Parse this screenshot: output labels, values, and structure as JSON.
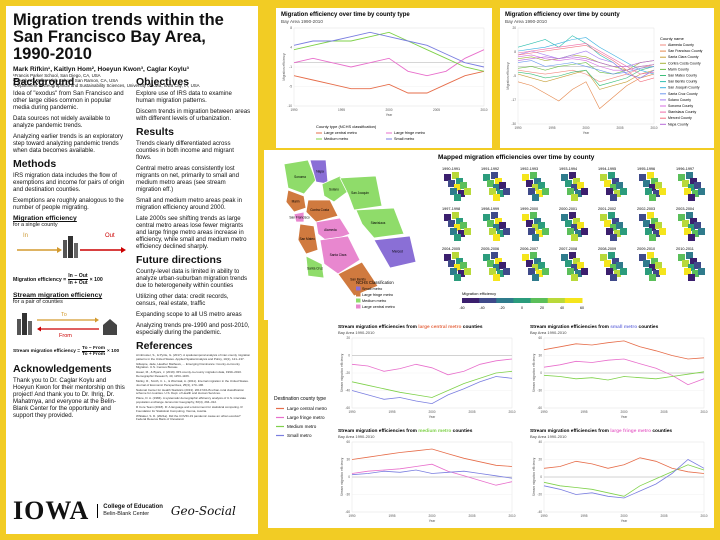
{
  "poster": {
    "title": "Migration trends within the San Francisco Bay Area, 1990-2010",
    "authors": "Mark Rifkin¹, Kaitlyn Hom², Hoeyun Kwon³, Caglar Koylu³",
    "affiliations": [
      "¹Francis Parker School, San Diego, CA, USA",
      "²Dougherty Valley High School, San Ramon, CA, USA",
      "³Department of Geographical and Sustainability Sciences, University of Iowa, Iowa City, IA, USA"
    ]
  },
  "background": {
    "heading": "Background",
    "paragraphs": [
      "Idea of \"exodus\" from San Francisco and other large cities common in popular media during pandemic.",
      "Data sources not widely available to analyze pandemic trends.",
      "Analyzing earlier trends is an exploratory step toward analyzing pandemic trends when data becomes available."
    ]
  },
  "methods": {
    "heading": "Methods",
    "paragraphs": [
      "IRS migration data includes the flow of exemptions and income for pairs of origin and destination counties.",
      "Exemptions are roughly analogous to the number of people migrating."
    ],
    "eff_heading": "Migration efficiency",
    "eff_sub": "for a single county",
    "eff_in": "In",
    "eff_out": "Out",
    "eff_formula_label": "Migration efficiency =",
    "eff_formula_num": "In − Out",
    "eff_formula_den": "In + Out",
    "eff_formula_mult": "× 100",
    "stream_heading": "Stream migration efficiency",
    "stream_sub": "for a pair of counties",
    "stream_to": "To",
    "stream_from": "From",
    "stream_formula_label": "Stream migration efficiency =",
    "stream_formula_num": "To − From",
    "stream_formula_den": "To + From",
    "stream_formula_mult": "× 100"
  },
  "acknowledgements": {
    "heading": "Acknowledgements",
    "text": "Thank you to Dr. Caglar Koylu and Hoeyun Kwon for their mentorship on this project! And thank you to Dr. Ihrig, Dr. Mahatmya, and everyone at the Belin-Blank Center for the opportunity and support they provided."
  },
  "objectives": {
    "heading": "Objectives",
    "paragraphs": [
      "Explore use of IRS data to examine human migration patterns.",
      "Discern trends in migration between areas with different levels of urbanization."
    ]
  },
  "results": {
    "heading": "Results",
    "paragraphs": [
      "Trends clearly differentiated across counties in both income and migrant flows.",
      "Central metro areas consistently lost migrants on net, primarily to small and medium metro areas (see stream migration eff.)",
      "Small and medium metro areas peak in migration efficiency around 2000.",
      "Late 2000s see shifting trends as large central metro areas lose fewer migrants and large fringe metro areas increase in efficiency, while small and medium metro efficiency declined sharply."
    ]
  },
  "future": {
    "heading": "Future directions",
    "paragraphs": [
      "County-level data is limited in ability to analyze urban-suburban migration trends due to heterogeneity within counties",
      "Utilizing other data: credit records, census, real estate, traffic",
      "Expanding scope to all US metro areas",
      "Analyzing trends pre-1990 and post-2010, especially during the pandemic."
    ]
  },
  "references": {
    "heading": "References",
    "items": [
      "Armbruster, S., & Pyrtle, G. (2017). A spatiotemporal analysis of inter-county migration patterns in the United States. Applied Spatial Analysis and Policy, 10(1), 121–137.",
      "Gillespie, Jade, Heather Mathews, ... Emerging Dominance: County-to-County Migration. U.S. Census Bureau.",
      "Hauer, M., & Byars, J. (2019). IRS county-to-county migration data, 1990–2010. Demographic Research, 40, 1153–1166.",
      "Molloy, R., Smith, C. L., & Wozniak, A. (2011). Internal migration in the United States. Journal of Economic Perspectives, 25(3), 173–196.",
      "National Center for Health Statistics (2013). 2013 NCHS urban-rural classification scheme for counties. U.S. Dept. of Health and Human Services.",
      "Plane, D. A. (1984). A systematic demographic efficiency analysis of U.S. interstate population exchange. Economic Geography, 60(4), 294–312.",
      "R Core Team (2018). R: A language and environment for statistical computing. R Foundation for Statistical Computing, Vienna, Austria.",
      "Whitaker, S. D. (2021a). Did the COVID-19 pandemic cause an urban exodus? Federal Reserve Bank of Cleveland."
    ]
  },
  "logos": {
    "iowa": "IOWA",
    "college_line1": "College of Education",
    "college_line2": "Belin-Blank Center",
    "geosocial": "Geo-Social"
  },
  "chart_data": [
    {
      "type": "line",
      "title": "Migration efficiency over time by county type",
      "subtitle": "Bay Area 1990-2010",
      "xlabel": "Year",
      "ylabel": "Migration efficiency",
      "x": [
        1990,
        1992,
        1994,
        1996,
        1998,
        2000,
        2002,
        2004,
        2006,
        2008,
        2010
      ],
      "ylim": [
        -10,
        8
      ],
      "legend_title": "County type (NCHS classification)",
      "series": [
        {
          "name": "Large central metro",
          "color": "#e66d4a",
          "values": [
            -3,
            -4,
            -5,
            -6,
            -6,
            -5,
            -7,
            -7,
            -5,
            -3,
            -2
          ]
        },
        {
          "name": "Large fringe metro",
          "color": "#e86fcc",
          "values": [
            0,
            1,
            0,
            -1,
            0,
            1,
            -2,
            -3,
            -2,
            1,
            3
          ]
        },
        {
          "name": "Medium metro",
          "color": "#7fd14a",
          "values": [
            3,
            4,
            5,
            5,
            6,
            7,
            5,
            3,
            1,
            -1,
            -2
          ]
        },
        {
          "name": "Small metro",
          "color": "#7a7ee0",
          "values": [
            4,
            5,
            5,
            6,
            7,
            6,
            5,
            4,
            2,
            0,
            -1
          ]
        }
      ]
    },
    {
      "type": "line",
      "title": "Migration efficiency over time by county",
      "subtitle": "Bay Area 1990-2010",
      "xlabel": "Year",
      "ylabel": "Migration efficiency",
      "x": [
        1990,
        1992,
        1994,
        1996,
        1998,
        2000,
        2002,
        2004,
        2006,
        2008,
        2010
      ],
      "ylim": [
        -30,
        20
      ],
      "legend_title": "County name",
      "series": [
        {
          "name": "Alameda County",
          "color": "#f28b82",
          "values": [
            -2,
            -3,
            -4,
            -3,
            -2,
            -4,
            -8,
            -6,
            -4,
            -1,
            1
          ]
        },
        {
          "name": "San Francisco County",
          "color": "#e5884d",
          "values": [
            -8,
            -10,
            -14,
            -18,
            -12,
            -8,
            -22,
            -16,
            -10,
            -6,
            -4
          ]
        },
        {
          "name": "Santa Clara County",
          "color": "#c7a13a",
          "values": [
            -4,
            -6,
            -8,
            -6,
            -4,
            -2,
            -12,
            -10,
            -8,
            -4,
            -2
          ]
        },
        {
          "name": "Contra Costa County",
          "color": "#a6b33a",
          "values": [
            4,
            5,
            3,
            4,
            6,
            5,
            2,
            0,
            -2,
            2,
            3
          ]
        },
        {
          "name": "Marin County",
          "color": "#6fbf4a",
          "values": [
            -1,
            0,
            -2,
            0,
            1,
            2,
            -3,
            -4,
            -2,
            0,
            1
          ]
        },
        {
          "name": "San Mateo County",
          "color": "#3dbf7a",
          "values": [
            -3,
            -4,
            -6,
            -5,
            -3,
            -2,
            -10,
            -8,
            -6,
            -2,
            0
          ]
        },
        {
          "name": "San Benito County",
          "color": "#2fbfb0",
          "values": [
            10,
            12,
            14,
            10,
            16,
            12,
            6,
            2,
            -4,
            -6,
            -2
          ]
        },
        {
          "name": "San Joaquin County",
          "color": "#3bb0e0",
          "values": [
            8,
            9,
            10,
            12,
            14,
            15,
            10,
            6,
            2,
            -2,
            -4
          ]
        },
        {
          "name": "Santa Cruz County",
          "color": "#6f9af0",
          "values": [
            2,
            3,
            0,
            1,
            2,
            0,
            -2,
            -4,
            -3,
            -1,
            0
          ]
        },
        {
          "name": "Solano County",
          "color": "#a67ef2",
          "values": [
            6,
            8,
            6,
            4,
            6,
            8,
            4,
            2,
            -4,
            -6,
            -2
          ]
        },
        {
          "name": "Sonoma County",
          "color": "#d46ee0",
          "values": [
            5,
            6,
            4,
            3,
            4,
            3,
            0,
            -2,
            -2,
            0,
            1
          ]
        },
        {
          "name": "Stanislaus County",
          "color": "#ef6aa8",
          "values": [
            7,
            8,
            9,
            10,
            11,
            12,
            8,
            4,
            0,
            -4,
            -3
          ]
        },
        {
          "name": "Merced County",
          "color": "#f26f7f",
          "values": [
            6,
            7,
            8,
            9,
            10,
            11,
            7,
            3,
            -2,
            -8,
            -6
          ]
        },
        {
          "name": "Napa County",
          "color": "#b86ad8",
          "values": [
            3,
            4,
            5,
            4,
            5,
            4,
            2,
            0,
            0,
            2,
            3
          ]
        }
      ]
    },
    {
      "type": "line",
      "title_prefix": "Stream migration efficiencies from ",
      "title_highlight": "large central metro",
      "title_suffix": " counties",
      "highlight_color": "#e66d4a",
      "subtitle": "Bay Area 1990-2010",
      "xlabel": "Year",
      "ylabel": "Stream migration efficiency",
      "x": [
        1990,
        1992,
        1994,
        1996,
        1998,
        2000,
        2002,
        2004,
        2006,
        2008,
        2010
      ],
      "ylim": [
        -60,
        20
      ],
      "series": [
        {
          "name": "Large fringe metro",
          "color": "#e86fcc",
          "values": [
            -10,
            -12,
            -18,
            -15,
            -10,
            -14,
            -22,
            -18,
            -10,
            -6,
            -4
          ]
        },
        {
          "name": "Medium metro",
          "color": "#7fd14a",
          "values": [
            -30,
            -34,
            -38,
            -42,
            -45,
            -48,
            -40,
            -32,
            -26,
            -20,
            -18
          ]
        },
        {
          "name": "Small metro",
          "color": "#7a7ee0",
          "values": [
            -40,
            -45,
            -50,
            -48,
            -52,
            -55,
            -45,
            -38,
            -30,
            -24,
            -26
          ]
        }
      ]
    },
    {
      "type": "line",
      "title_prefix": "Stream migration efficiencies from ",
      "title_highlight": "small metro",
      "title_suffix": " counties",
      "highlight_color": "#7a7ee0",
      "subtitle": "Bay Area 1990-2010",
      "xlabel": "Year",
      "ylabel": "Stream migration efficiency",
      "x": [
        1990,
        1992,
        1994,
        1996,
        1998,
        2000,
        2002,
        2004,
        2006,
        2008,
        2010
      ],
      "ylim": [
        -60,
        60
      ],
      "series": [
        {
          "name": "Large central metro",
          "color": "#e66d4a",
          "values": [
            40,
            45,
            50,
            48,
            52,
            55,
            45,
            38,
            30,
            24,
            26
          ]
        },
        {
          "name": "Large fringe metro",
          "color": "#e86fcc",
          "values": [
            10,
            14,
            20,
            18,
            22,
            24,
            16,
            8,
            -4,
            -20,
            -10
          ]
        },
        {
          "name": "Medium metro",
          "color": "#7fd14a",
          "values": [
            -4,
            -6,
            -10,
            -8,
            -12,
            -6,
            -8,
            -10,
            -6,
            -2,
            2
          ]
        }
      ]
    },
    {
      "type": "line",
      "title_prefix": "Stream migration efficiencies from ",
      "title_highlight": "medium metro",
      "title_suffix": " counties",
      "highlight_color": "#7fd14a",
      "subtitle": "Bay Area 1990-2010",
      "xlabel": "Year",
      "ylabel": "Stream migration efficiency",
      "x": [
        1990,
        1992,
        1994,
        1996,
        1998,
        2000,
        2002,
        2004,
        2006,
        2008,
        2010
      ],
      "ylim": [
        -60,
        60
      ],
      "series": [
        {
          "name": "Large central metro",
          "color": "#e66d4a",
          "values": [
            30,
            34,
            38,
            42,
            45,
            48,
            40,
            32,
            26,
            20,
            18
          ]
        },
        {
          "name": "Large fringe metro",
          "color": "#e86fcc",
          "values": [
            6,
            10,
            12,
            14,
            18,
            22,
            10,
            2,
            -6,
            -14,
            -8
          ]
        },
        {
          "name": "Small metro",
          "color": "#7a7ee0",
          "values": [
            4,
            6,
            10,
            8,
            12,
            6,
            8,
            10,
            6,
            2,
            -2
          ]
        }
      ]
    },
    {
      "type": "line",
      "title_prefix": "Stream migration efficiencies from ",
      "title_highlight": "large fringe metro",
      "title_suffix": " counties",
      "highlight_color": "#e86fcc",
      "subtitle": "Bay Area 1990-2010",
      "xlabel": "Year",
      "ylabel": "Stream migration efficiency",
      "x": [
        1990,
        1992,
        1994,
        1996,
        1998,
        2000,
        2002,
        2004,
        2006,
        2008,
        2010
      ],
      "ylim": [
        -40,
        40
      ],
      "series": [
        {
          "name": "Large central metro",
          "color": "#e66d4a",
          "values": [
            10,
            12,
            18,
            15,
            10,
            14,
            22,
            18,
            10,
            6,
            4
          ]
        },
        {
          "name": "Medium metro",
          "color": "#7fd14a",
          "values": [
            -6,
            -10,
            -12,
            -14,
            -18,
            -22,
            -10,
            -2,
            6,
            14,
            8
          ]
        },
        {
          "name": "Small metro",
          "color": "#7a7ee0",
          "values": [
            -10,
            -14,
            -20,
            -18,
            -22,
            -24,
            -16,
            -8,
            4,
            20,
            10
          ]
        }
      ]
    }
  ],
  "stream_legend": {
    "title": "Destination county type",
    "items": [
      {
        "name": "Large central metro",
        "color": "#e66d4a"
      },
      {
        "name": "Large fringe metro",
        "color": "#e86fcc"
      },
      {
        "name": "Medium metro",
        "color": "#7fd14a"
      },
      {
        "name": "Small metro",
        "color": "#7a7ee0"
      }
    ]
  },
  "county_map": {
    "legend_title": "NCHS Classification",
    "legend": [
      {
        "name": "Small metro",
        "color": "#8a6fd6"
      },
      {
        "name": "Large fringe metro",
        "color": "#d07a3f"
      },
      {
        "name": "Medium metro",
        "color": "#8fdc6a"
      },
      {
        "name": "Large central metro",
        "color": "#e887cf"
      }
    ],
    "counties": [
      {
        "name": "Sonoma",
        "color": "#8fdc6a"
      },
      {
        "name": "Napa",
        "color": "#8a6fd6"
      },
      {
        "name": "Solano",
        "color": "#8fdc6a"
      },
      {
        "name": "Marin",
        "color": "#d07a3f"
      },
      {
        "name": "Contra Costa",
        "color": "#d07a3f"
      },
      {
        "name": "San Joaquin",
        "color": "#8fdc6a"
      },
      {
        "name": "San Francisco",
        "color": "#e887cf"
      },
      {
        "name": "Alameda",
        "color": "#e887cf"
      },
      {
        "name": "Stanislaus",
        "color": "#8fdc6a"
      },
      {
        "name": "San Mateo",
        "color": "#d07a3f"
      },
      {
        "name": "Santa Clara",
        "color": "#e887cf"
      },
      {
        "name": "Merced",
        "color": "#8a6fd6"
      },
      {
        "name": "Santa Cruz",
        "color": "#8fdc6a"
      },
      {
        "name": "San Benito",
        "color": "#d07a3f"
      }
    ]
  },
  "small_multiples": {
    "title": "Mapped migration efficiencies over time by county",
    "years": [
      "1990-1991",
      "1991-1992",
      "1992-1993",
      "1993-1994",
      "1994-1995",
      "1995-1996",
      "1996-1997",
      "1997-1998",
      "1998-1999",
      "1999-2000",
      "2000-2001",
      "2001-2002",
      "2002-2003",
      "2003-2004",
      "2004-2005",
      "2005-2006",
      "2006-2007",
      "2007-2008",
      "2008-2009",
      "2009-2010",
      "2010-2011"
    ],
    "legend_title": "Migration efficiency",
    "legend_ticks": [
      "-60",
      "-40",
      "-20",
      "0",
      "20",
      "40",
      "60"
    ],
    "palette": [
      "#3b1f6e",
      "#3f4a8a",
      "#2f7b8c",
      "#2b9c7c",
      "#5bbf5a",
      "#b9d93a",
      "#f5e51c"
    ]
  }
}
